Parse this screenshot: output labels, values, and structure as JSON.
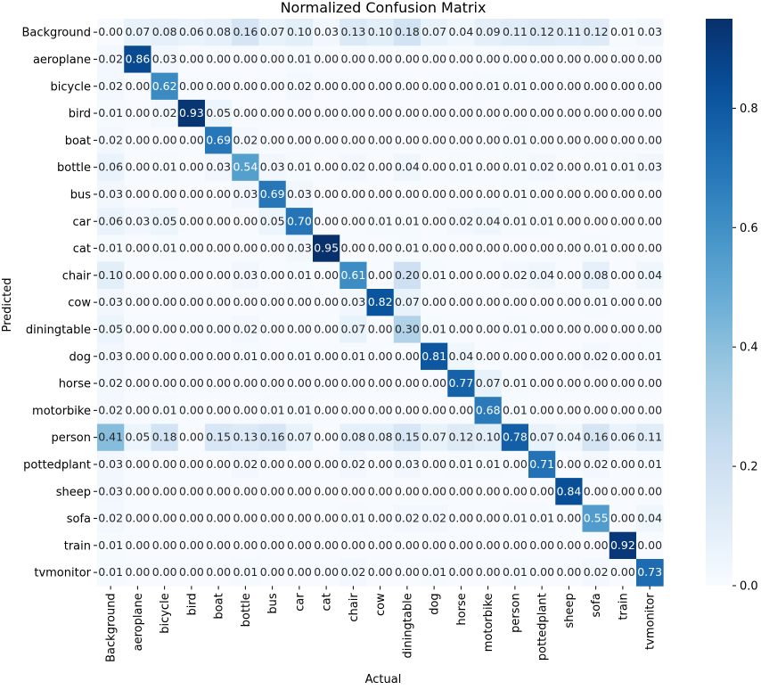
{
  "chart_data": {
    "type": "heatmap",
    "title": "Normalized Confusion Matrix",
    "xlabel": "Actual",
    "ylabel": "Predicted",
    "x_categories": [
      "Background",
      "aeroplane",
      "bicycle",
      "bird",
      "boat",
      "bottle",
      "bus",
      "car",
      "cat",
      "chair",
      "cow",
      "diningtable",
      "dog",
      "horse",
      "motorbike",
      "person",
      "pottedplant",
      "sheep",
      "sofa",
      "train",
      "tvmonitor"
    ],
    "y_categories": [
      "Background",
      "aeroplane",
      "bicycle",
      "bird",
      "boat",
      "bottle",
      "bus",
      "car",
      "cat",
      "chair",
      "cow",
      "diningtable",
      "dog",
      "horse",
      "motorbike",
      "person",
      "pottedplant",
      "sheep",
      "sofa",
      "train",
      "tvmonitor"
    ],
    "values": [
      [
        0.0,
        0.07,
        0.08,
        0.06,
        0.08,
        0.16,
        0.07,
        0.1,
        0.03,
        0.13,
        0.1,
        0.18,
        0.07,
        0.04,
        0.09,
        0.11,
        0.12,
        0.11,
        0.12,
        0.01,
        0.03
      ],
      [
        0.02,
        0.86,
        0.03,
        0.0,
        0.0,
        0.0,
        0.0,
        0.01,
        0.0,
        0.0,
        0.0,
        0.0,
        0.0,
        0.0,
        0.0,
        0.0,
        0.0,
        0.0,
        0.0,
        0.0,
        0.0
      ],
      [
        0.02,
        0.0,
        0.62,
        0.0,
        0.0,
        0.0,
        0.0,
        0.02,
        0.0,
        0.0,
        0.0,
        0.0,
        0.0,
        0.0,
        0.01,
        0.01,
        0.0,
        0.0,
        0.0,
        0.0,
        0.0
      ],
      [
        0.01,
        0.0,
        0.02,
        0.93,
        0.05,
        0.0,
        0.0,
        0.0,
        0.0,
        0.0,
        0.0,
        0.0,
        0.0,
        0.0,
        0.0,
        0.0,
        0.0,
        0.0,
        0.0,
        0.0,
        0.0
      ],
      [
        0.02,
        0.0,
        0.0,
        0.0,
        0.69,
        0.02,
        0.0,
        0.0,
        0.0,
        0.0,
        0.0,
        0.0,
        0.0,
        0.0,
        0.0,
        0.01,
        0.0,
        0.0,
        0.0,
        0.0,
        0.0
      ],
      [
        0.06,
        0.0,
        0.01,
        0.0,
        0.03,
        0.54,
        0.03,
        0.01,
        0.0,
        0.02,
        0.0,
        0.04,
        0.0,
        0.01,
        0.0,
        0.01,
        0.02,
        0.0,
        0.01,
        0.01,
        0.03
      ],
      [
        0.03,
        0.0,
        0.0,
        0.0,
        0.0,
        0.03,
        0.69,
        0.03,
        0.0,
        0.0,
        0.0,
        0.0,
        0.0,
        0.0,
        0.0,
        0.01,
        0.0,
        0.0,
        0.0,
        0.0,
        0.0
      ],
      [
        0.06,
        0.03,
        0.05,
        0.0,
        0.0,
        0.0,
        0.05,
        0.7,
        0.0,
        0.0,
        0.01,
        0.01,
        0.0,
        0.02,
        0.04,
        0.01,
        0.01,
        0.0,
        0.0,
        0.0,
        0.0
      ],
      [
        0.01,
        0.0,
        0.01,
        0.0,
        0.0,
        0.0,
        0.0,
        0.03,
        0.95,
        0.0,
        0.0,
        0.01,
        0.0,
        0.0,
        0.0,
        0.0,
        0.0,
        0.0,
        0.01,
        0.0,
        0.0
      ],
      [
        0.1,
        0.0,
        0.0,
        0.0,
        0.0,
        0.03,
        0.0,
        0.01,
        0.0,
        0.61,
        0.0,
        0.2,
        0.01,
        0.0,
        0.0,
        0.02,
        0.04,
        0.0,
        0.08,
        0.0,
        0.04
      ],
      [
        0.03,
        0.0,
        0.0,
        0.0,
        0.0,
        0.0,
        0.0,
        0.0,
        0.0,
        0.03,
        0.82,
        0.07,
        0.0,
        0.0,
        0.0,
        0.0,
        0.0,
        0.0,
        0.01,
        0.0,
        0.0
      ],
      [
        0.05,
        0.0,
        0.0,
        0.0,
        0.0,
        0.02,
        0.0,
        0.0,
        0.0,
        0.07,
        0.0,
        0.3,
        0.01,
        0.0,
        0.0,
        0.01,
        0.0,
        0.0,
        0.0,
        0.0,
        0.0
      ],
      [
        0.03,
        0.0,
        0.0,
        0.0,
        0.0,
        0.01,
        0.0,
        0.01,
        0.0,
        0.01,
        0.0,
        0.0,
        0.81,
        0.04,
        0.0,
        0.0,
        0.0,
        0.0,
        0.02,
        0.0,
        0.01
      ],
      [
        0.02,
        0.0,
        0.0,
        0.0,
        0.0,
        0.0,
        0.0,
        0.0,
        0.0,
        0.0,
        0.0,
        0.0,
        0.0,
        0.77,
        0.07,
        0.01,
        0.0,
        0.0,
        0.0,
        0.0,
        0.0
      ],
      [
        0.02,
        0.0,
        0.01,
        0.0,
        0.0,
        0.0,
        0.01,
        0.01,
        0.0,
        0.0,
        0.0,
        0.0,
        0.0,
        0.0,
        0.68,
        0.01,
        0.0,
        0.0,
        0.0,
        0.0,
        0.0
      ],
      [
        0.41,
        0.05,
        0.18,
        0.0,
        0.15,
        0.13,
        0.16,
        0.07,
        0.0,
        0.08,
        0.08,
        0.15,
        0.07,
        0.12,
        0.1,
        0.78,
        0.07,
        0.04,
        0.16,
        0.06,
        0.11
      ],
      [
        0.03,
        0.0,
        0.0,
        0.0,
        0.0,
        0.02,
        0.0,
        0.0,
        0.0,
        0.02,
        0.0,
        0.03,
        0.0,
        0.01,
        0.01,
        0.0,
        0.71,
        0.0,
        0.02,
        0.0,
        0.01
      ],
      [
        0.03,
        0.0,
        0.0,
        0.0,
        0.0,
        0.0,
        0.0,
        0.0,
        0.0,
        0.0,
        0.0,
        0.0,
        0.0,
        0.0,
        0.0,
        0.0,
        0.0,
        0.84,
        0.0,
        0.0,
        0.0
      ],
      [
        0.02,
        0.0,
        0.0,
        0.0,
        0.0,
        0.0,
        0.0,
        0.0,
        0.0,
        0.01,
        0.0,
        0.02,
        0.02,
        0.0,
        0.0,
        0.01,
        0.01,
        0.0,
        0.55,
        0.0,
        0.04
      ],
      [
        0.01,
        0.0,
        0.0,
        0.0,
        0.0,
        0.0,
        0.0,
        0.0,
        0.0,
        0.0,
        0.0,
        0.0,
        0.0,
        0.0,
        0.0,
        0.0,
        0.0,
        0.0,
        0.0,
        0.92,
        0.0
      ],
      [
        0.01,
        0.0,
        0.0,
        0.0,
        0.0,
        0.01,
        0.0,
        0.0,
        0.0,
        0.02,
        0.0,
        0.0,
        0.01,
        0.0,
        0.0,
        0.01,
        0.0,
        0.0,
        0.02,
        0.0,
        0.73
      ]
    ],
    "value_format": "0.00",
    "colormap": "Blues",
    "colorbar": {
      "vmin": 0.0,
      "vmax": 0.95,
      "ticks": [
        0.0,
        0.2,
        0.4,
        0.6,
        0.8
      ],
      "tick_labels": [
        "0.0",
        "0.2",
        "0.4",
        "0.6",
        "0.8"
      ]
    },
    "grid": false,
    "colors": {
      "low": "#f7fbff",
      "high": "#08306b",
      "text_dark": "#262626",
      "text_light": "#ffffff"
    }
  }
}
